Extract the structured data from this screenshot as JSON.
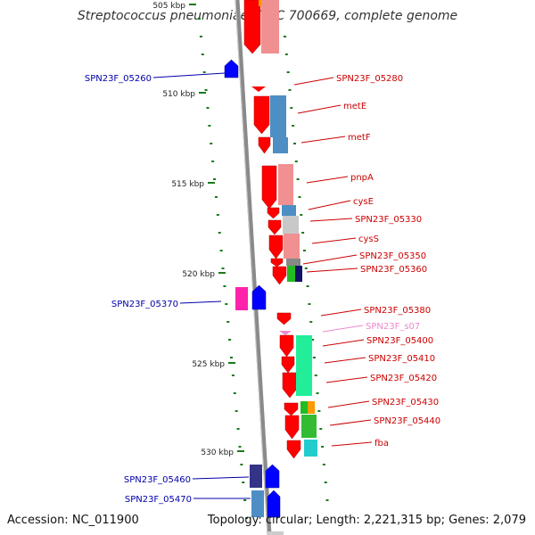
{
  "title": "Streptococcus pneumoniae ATCC 700669, complete genome",
  "accession": "Accession: NC_011900",
  "summary": "Topology: circular; Length: 2,221,315 bp; Genes: 2,079",
  "colors": {
    "backbone": "#888888",
    "tick": "#1a7a1a",
    "minus_label": "#0000aa",
    "plus_label": "#cc0000",
    "rna_label": "#ee88cc",
    "gene_plus": "#ee0000",
    "gene_minus": "#0000ee"
  },
  "ruler": [
    {
      "label": "505 kbp",
      "value": 505
    },
    {
      "label": "510 kbp",
      "value": 510
    },
    {
      "label": "515 kbp",
      "value": 515
    },
    {
      "label": "520 kbp",
      "value": 520
    },
    {
      "label": "525 kbp",
      "value": 525
    },
    {
      "label": "530 kbp",
      "value": 530
    }
  ],
  "plus_genes": [
    {
      "label": "SPN23F_05280"
    },
    {
      "label": "metE"
    },
    {
      "label": "metF"
    },
    {
      "label": "pnpA"
    },
    {
      "label": "cysE"
    },
    {
      "label": "SPN23F_05330"
    },
    {
      "label": "cysS"
    },
    {
      "label": "SPN23F_05350"
    },
    {
      "label": "SPN23F_05360"
    },
    {
      "label": "SPN23F_05380"
    },
    {
      "label": "SPN23F_s07",
      "type": "rna"
    },
    {
      "label": "SPN23F_05400"
    },
    {
      "label": "SPN23F_05410"
    },
    {
      "label": "SPN23F_05420"
    },
    {
      "label": "SPN23F_05430"
    },
    {
      "label": "SPN23F_05440"
    },
    {
      "label": "fba"
    }
  ],
  "minus_genes": [
    {
      "label": "SPN23F_05260"
    },
    {
      "label": "SPN23F_05370"
    },
    {
      "label": "SPN23F_05460"
    },
    {
      "label": "SPN23F_05470"
    }
  ]
}
